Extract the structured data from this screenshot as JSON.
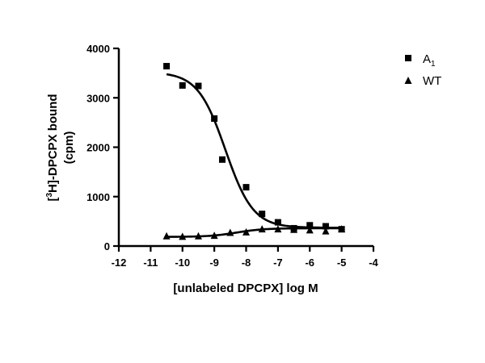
{
  "chart_data": {
    "type": "scatter",
    "xlabel": "[unlabeled DPCPX] log M",
    "ylabel_line1_prefix": "[",
    "ylabel_line1_sup": "3",
    "ylabel_line1_suffix": "H]-DPCPX bound",
    "ylabel_line2": "(cpm)",
    "xlim": [
      -12,
      -4
    ],
    "ylim": [
      0,
      4000
    ],
    "x_ticks": [
      -12,
      -11,
      -10,
      -9,
      -8,
      -7,
      -6,
      -5,
      -4
    ],
    "x_tick_labels": [
      "-12",
      "-11",
      "-10",
      "-9",
      "-8",
      "-7",
      "-6",
      "-5",
      "-4"
    ],
    "y_ticks": [
      0,
      1000,
      2000,
      3000,
      4000
    ],
    "y_tick_labels": [
      "0",
      "1000",
      "2000",
      "3000",
      "4000"
    ],
    "legend_position": "top-right",
    "grid": false,
    "series": [
      {
        "name": "A",
        "name_subscript": "1",
        "marker": "square",
        "x": [
          -10.5,
          -10.0,
          -9.5,
          -9.0,
          -8.75,
          -8.0,
          -7.5,
          -7.0,
          -6.5,
          -6.0,
          -5.5,
          -5.0
        ],
        "y": [
          3640,
          3250,
          3240,
          2580,
          1750,
          1190,
          650,
          480,
          360,
          420,
          400,
          340
        ],
        "fit": {
          "top": 3520,
          "bottom": 370,
          "logIC50": -8.65,
          "hill": -1.0
        }
      },
      {
        "name": "WT",
        "name_subscript": "",
        "marker": "triangle",
        "x": [
          -10.5,
          -10.0,
          -9.5,
          -9.0,
          -8.5,
          -8.0,
          -7.5,
          -7.0,
          -6.5,
          -6.0,
          -5.5,
          -5.0
        ],
        "y": [
          200,
          190,
          200,
          210,
          270,
          280,
          340,
          340,
          330,
          320,
          300,
          340
        ],
        "fit": {
          "top": 185,
          "bottom": 360,
          "logIC50": -8.3,
          "hill": -1.0
        }
      }
    ]
  }
}
